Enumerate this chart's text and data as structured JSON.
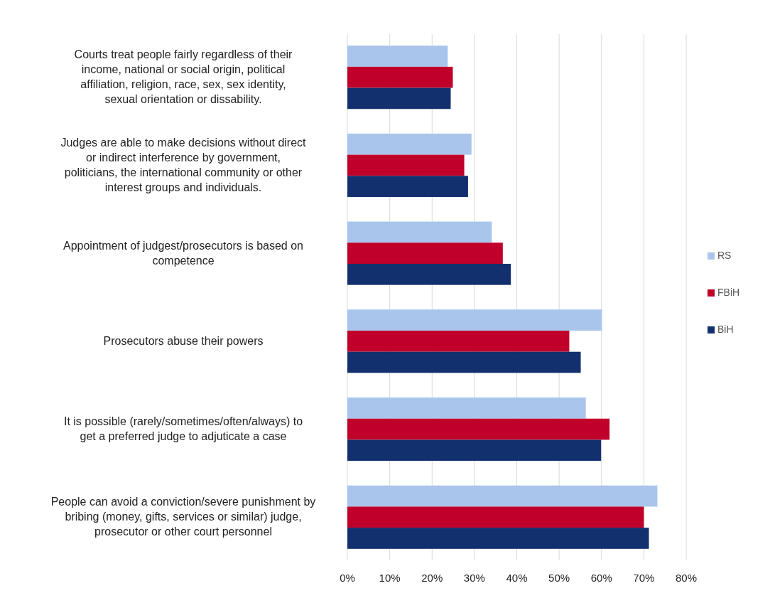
{
  "chart_data": {
    "type": "bar",
    "orientation": "horizontal",
    "categories": [
      "Courts treat people fairly regardless of their income, national or social origin, political affiliation, religion, race, sex, sex identity, sexual orientation or dissability.",
      "Judges are able to make decisions without direct or indirect interference by government, politicians, the international community or other interest groups and individuals.",
      "Appointment of judgest/prosecutors is based on competence",
      "Prosecutors abuse their powers",
      "It is possible (rarely/sometimes/often/always) to get a preferred judge to adjuticate a case",
      "People can avoid a conviction/severe punishment by bribing (money, gifts, services or similar) judge, prosecutor or other court personnel"
    ],
    "series": [
      {
        "name": "RS",
        "color": "#a9c5eb",
        "values": [
          23.7,
          29.3,
          34.1,
          60.1,
          56.3,
          73.2
        ]
      },
      {
        "name": "FBiH",
        "color": "#c0002a",
        "values": [
          24.9,
          27.6,
          36.7,
          52.4,
          61.9,
          70.0
        ]
      },
      {
        "name": "BiH",
        "color": "#13306e",
        "values": [
          24.4,
          28.5,
          38.6,
          55.1,
          59.9,
          71.2
        ]
      }
    ],
    "xlim": [
      0,
      80
    ],
    "xticks": [
      {
        "value": 0,
        "label": "0%"
      },
      {
        "value": 10,
        "label": "10%"
      },
      {
        "value": 20,
        "label": "20%"
      },
      {
        "value": 30,
        "label": "30%"
      },
      {
        "value": 40,
        "label": "40%"
      },
      {
        "value": 50,
        "label": "50%"
      },
      {
        "value": 60,
        "label": "60%"
      },
      {
        "value": 70,
        "label": "70%"
      },
      {
        "value": 80,
        "label": "80%"
      }
    ],
    "grid": "x",
    "legend": "right"
  }
}
